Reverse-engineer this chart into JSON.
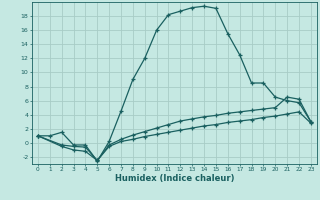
{
  "xlabel": "Humidex (Indice chaleur)",
  "bg_color": "#c5e8e2",
  "grid_color": "#a8ccc6",
  "line_color": "#1a6060",
  "xlim": [
    -0.5,
    23.5
  ],
  "ylim": [
    -3.0,
    20.0
  ],
  "xticks": [
    0,
    1,
    2,
    3,
    4,
    5,
    6,
    7,
    8,
    9,
    10,
    11,
    12,
    13,
    14,
    15,
    16,
    17,
    18,
    19,
    20,
    21,
    22,
    23
  ],
  "yticks": [
    -2,
    0,
    2,
    4,
    6,
    8,
    10,
    12,
    14,
    16,
    18
  ],
  "curve1_x": [
    0,
    1,
    2,
    3,
    4,
    5,
    6,
    7,
    8,
    9,
    10,
    11,
    12,
    13,
    14,
    15,
    16,
    17,
    18,
    19,
    20,
    21,
    22,
    23
  ],
  "curve1_y": [
    1,
    1,
    1.5,
    -0.3,
    -0.3,
    -2.6,
    0.2,
    4.5,
    9.0,
    12.0,
    16.0,
    18.2,
    18.7,
    19.2,
    19.4,
    19.1,
    15.5,
    12.5,
    8.5,
    8.5,
    6.5,
    6.0,
    5.7,
    3.0
  ],
  "curve2_x": [
    0,
    2,
    3,
    4,
    5,
    6,
    7,
    8,
    9,
    10,
    11,
    12,
    13,
    14,
    15,
    16,
    17,
    18,
    19,
    20,
    21,
    22,
    23
  ],
  "curve2_y": [
    1.0,
    -0.3,
    -0.5,
    -0.6,
    -2.5,
    -0.3,
    0.5,
    1.1,
    1.6,
    2.1,
    2.6,
    3.1,
    3.4,
    3.7,
    3.9,
    4.2,
    4.4,
    4.6,
    4.8,
    5.0,
    6.5,
    6.2,
    3.0
  ],
  "curve3_x": [
    0,
    2,
    3,
    4,
    5,
    6,
    7,
    8,
    9,
    10,
    11,
    12,
    13,
    14,
    15,
    16,
    17,
    18,
    19,
    20,
    21,
    22,
    23
  ],
  "curve3_y": [
    1.0,
    -0.5,
    -1.0,
    -1.2,
    -2.5,
    -0.5,
    0.2,
    0.5,
    0.9,
    1.2,
    1.5,
    1.8,
    2.1,
    2.4,
    2.6,
    2.9,
    3.1,
    3.3,
    3.6,
    3.8,
    4.1,
    4.4,
    2.8
  ]
}
